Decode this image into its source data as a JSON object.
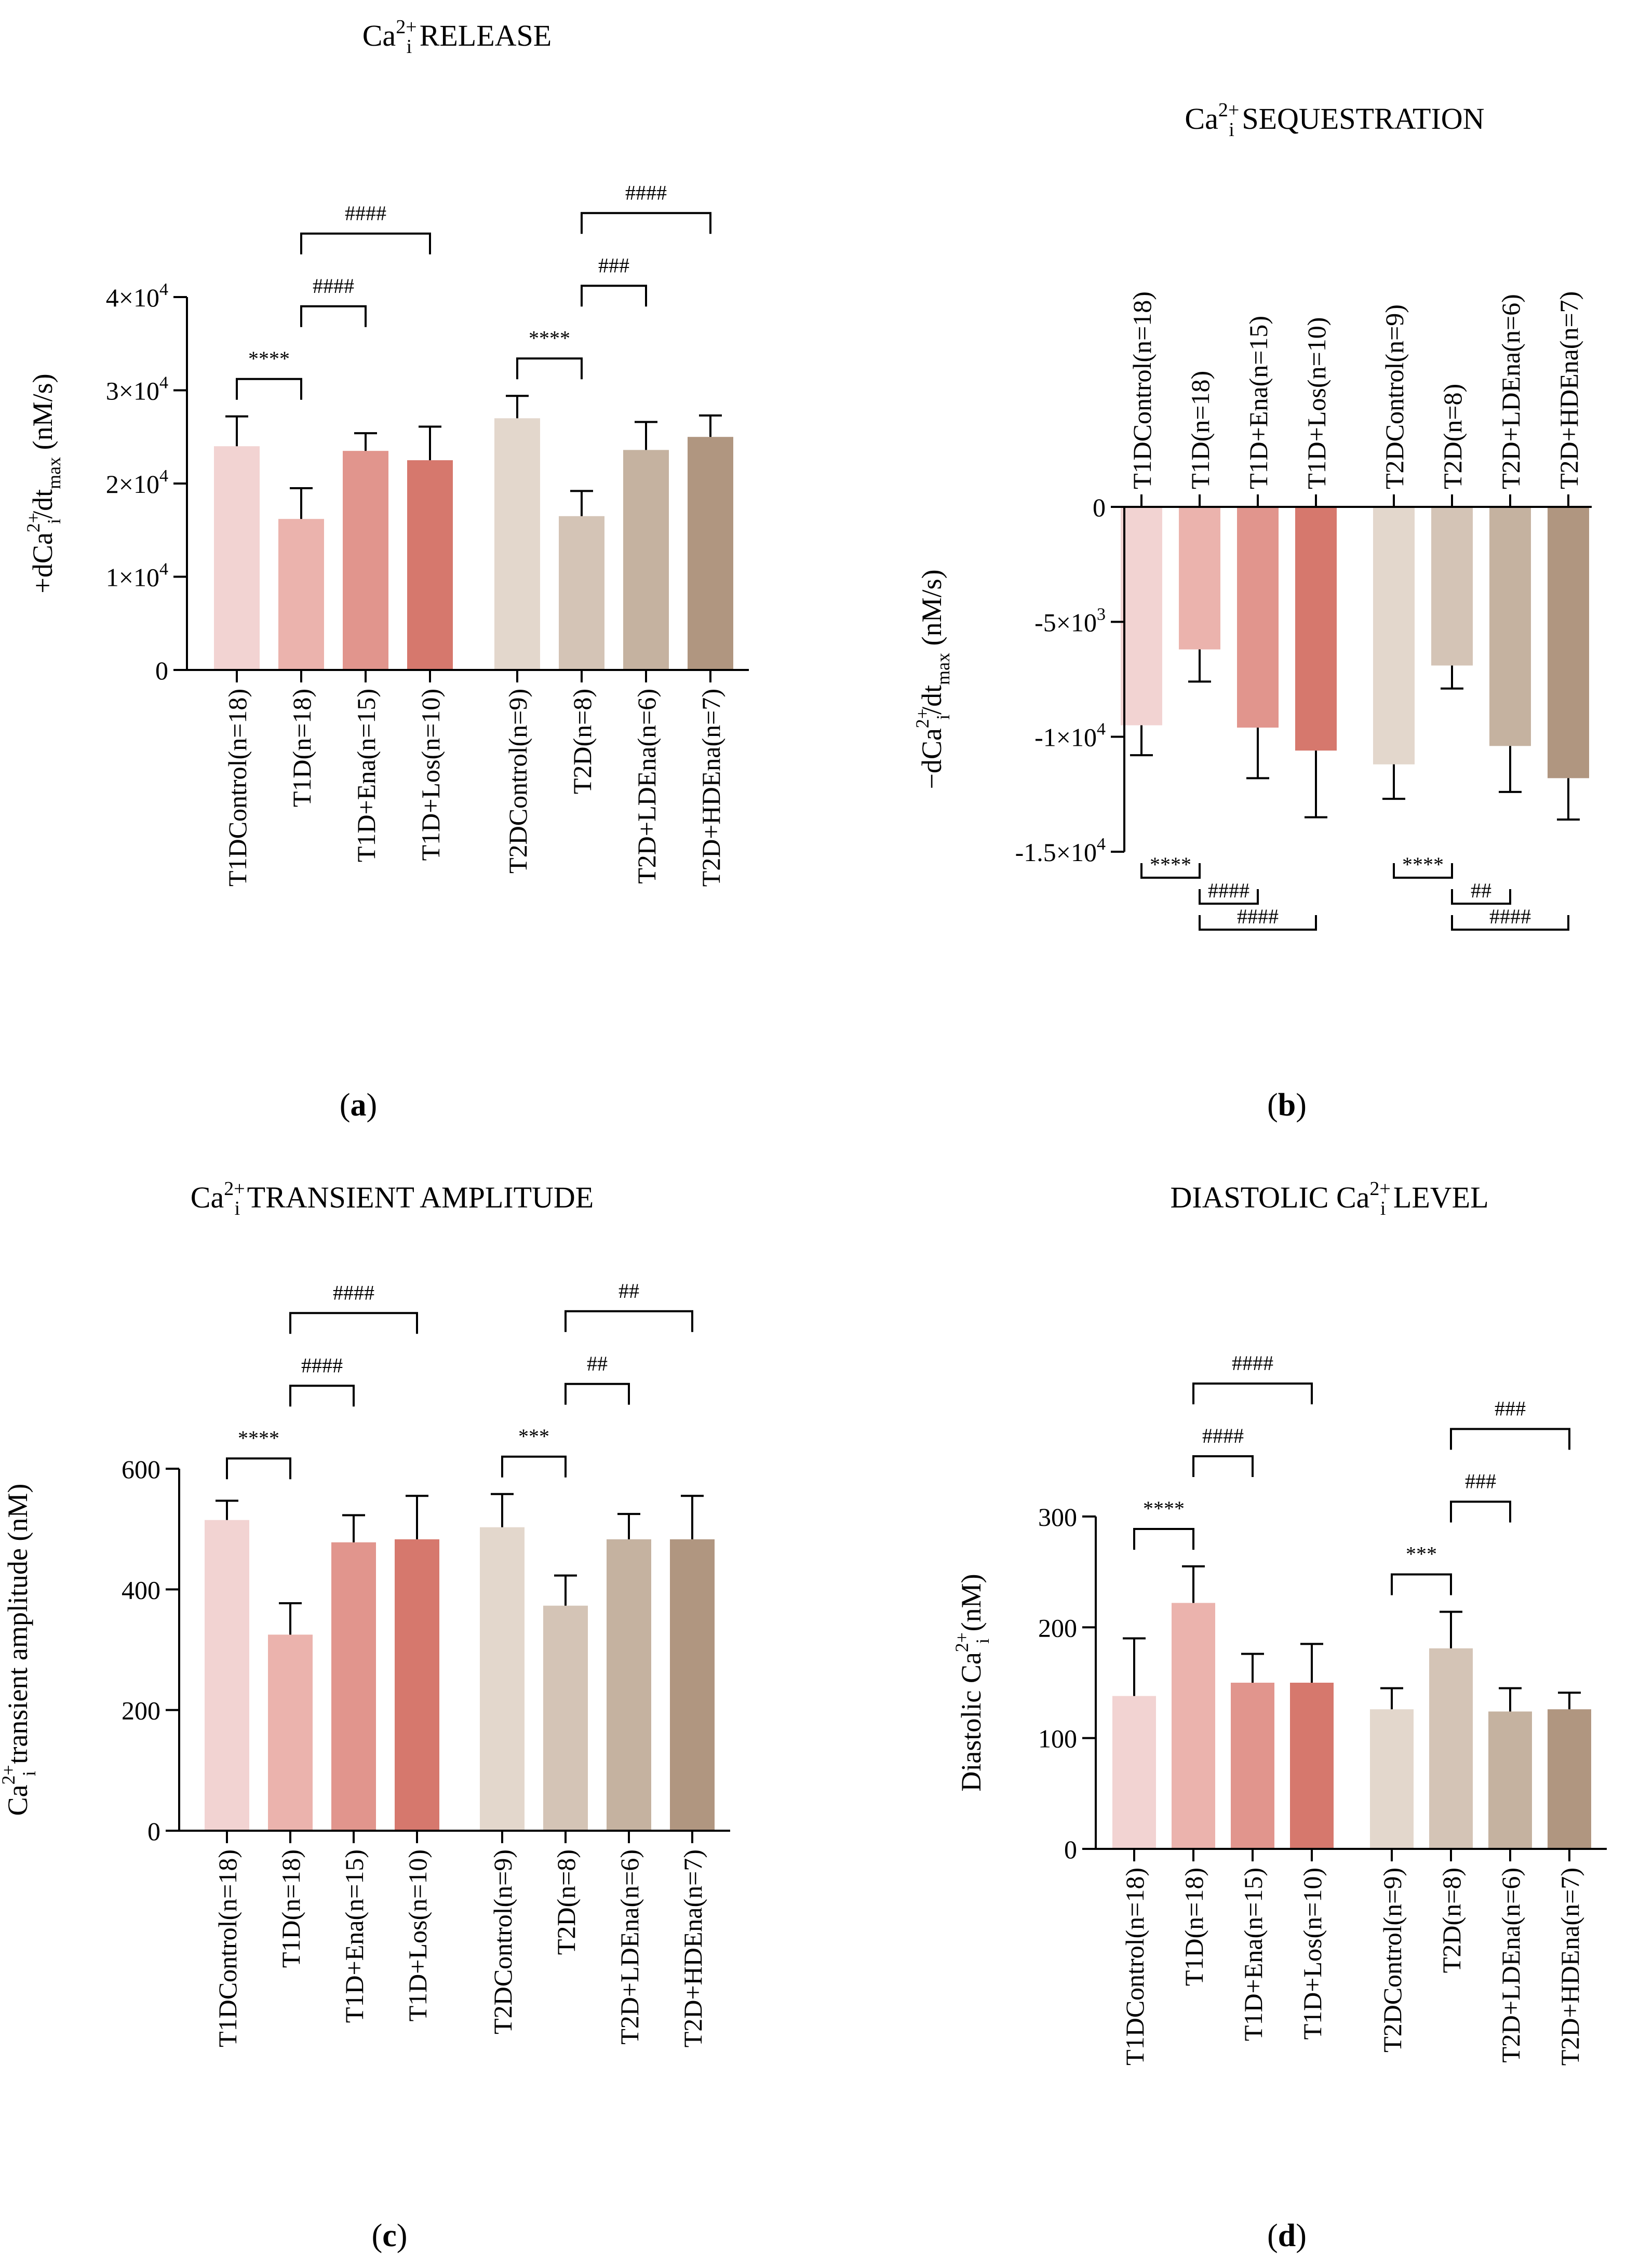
{
  "chart_data": [
    {
      "id": "a",
      "type": "bar",
      "panel_label": "a",
      "title_main": "Ca",
      "title_sup": "2+",
      "title_sub": "i",
      "title_rest": "RELEASE",
      "ylabel_parts": [
        "+dCa",
        "2+",
        "i",
        "/dt",
        "max",
        "(nM/s)"
      ],
      "ylim": [
        0,
        40000
      ],
      "yticks": [
        {
          "value": 0,
          "label": "0"
        },
        {
          "value": 10000,
          "label": "1×10",
          "exp": "4"
        },
        {
          "value": 20000,
          "label": "2×10",
          "exp": "4"
        },
        {
          "value": 30000,
          "label": "3×10",
          "exp": "4"
        },
        {
          "value": 40000,
          "label": "4×10",
          "exp": "4"
        }
      ],
      "categories": [
        "T1DControl(n=18)",
        "T1D(n=18)",
        "T1D+Ena(n=15)",
        "T1D+Los(n=10)",
        "T2DControl(n=9)",
        "T2D(n=8)",
        "T2D+LDEna(n=6)",
        "T2D+HDEna(n=7)"
      ],
      "values": [
        24000,
        16200,
        23500,
        22500,
        27000,
        16500,
        23600,
        25000
      ],
      "errors": [
        3200,
        3300,
        1900,
        3600,
        2400,
        2700,
        3000,
        2300
      ],
      "colors": [
        "#f2d3d2",
        "#ebb3ad",
        "#e1958d",
        "#d6786d",
        "#e3d7cc",
        "#d4c4b6",
        "#c5b2a0",
        "#b09680"
      ],
      "significance": [
        {
          "from": 0,
          "to": 1,
          "label": "****",
          "level": 1
        },
        {
          "from": 1,
          "to": 2,
          "label": "####",
          "level": 2
        },
        {
          "from": 1,
          "to": 3,
          "label": "####",
          "level": 3
        },
        {
          "from": 4,
          "to": 5,
          "label": "****",
          "level": 1
        },
        {
          "from": 5,
          "to": 6,
          "label": "###",
          "level": 2
        },
        {
          "from": 5,
          "to": 7,
          "label": "####",
          "level": 3
        }
      ]
    },
    {
      "id": "b",
      "type": "bar",
      "panel_label": "b",
      "title_main": "Ca",
      "title_sup": "2+",
      "title_sub": "i",
      "title_rest": "SEQUESTRATION",
      "ylabel_parts": [
        "−dCa",
        "2+",
        "i",
        "/dt",
        "max",
        "(nM/s)"
      ],
      "ylim": [
        -15000,
        0
      ],
      "yticks": [
        {
          "value": 0,
          "label": "0"
        },
        {
          "value": -5000,
          "label": "-5×10",
          "exp": "3"
        },
        {
          "value": -10000,
          "label": "-1×10",
          "exp": "4"
        },
        {
          "value": -15000,
          "label": "-1.5×10",
          "exp": "4"
        }
      ],
      "categories": [
        "T1DControl(n=18)",
        "T1D(n=18)",
        "T1D+Ena(n=15)",
        "T1D+Los(n=10)",
        "T2DControl(n=9)",
        "T2D(n=8)",
        "T2D+LDEna(n=6)",
        "T2D+HDEna(n=7)"
      ],
      "values": [
        -9500,
        -6200,
        -9600,
        -10600,
        -11200,
        -6900,
        -10400,
        -11800
      ],
      "errors": [
        1300,
        1400,
        2200,
        2900,
        1500,
        1000,
        2000,
        1800
      ],
      "colors": [
        "#f2d3d2",
        "#ebb3ad",
        "#e1958d",
        "#d6786d",
        "#e3d7cc",
        "#d4c4b6",
        "#c5b2a0",
        "#b09680"
      ],
      "significance": [
        {
          "from": 0,
          "to": 1,
          "label": "****",
          "level": 1
        },
        {
          "from": 1,
          "to": 2,
          "label": "####",
          "level": 2
        },
        {
          "from": 1,
          "to": 3,
          "label": "####",
          "level": 3
        },
        {
          "from": 4,
          "to": 5,
          "label": "****",
          "level": 1
        },
        {
          "from": 5,
          "to": 6,
          "label": "##",
          "level": 2
        },
        {
          "from": 5,
          "to": 7,
          "label": "####",
          "level": 3
        }
      ]
    },
    {
      "id": "c",
      "type": "bar",
      "panel_label": "c",
      "title_main": "Ca",
      "title_sup": "2+",
      "title_sub": "i",
      "title_rest": "TRANSIENT AMPLITUDE",
      "ylabel_parts": [
        "Ca",
        "2+",
        "i",
        "transient amplitude (nM)"
      ],
      "ylim": [
        0,
        600
      ],
      "yticks": [
        {
          "value": 0,
          "label": "0"
        },
        {
          "value": 200,
          "label": "200"
        },
        {
          "value": 400,
          "label": "400"
        },
        {
          "value": 600,
          "label": "600"
        }
      ],
      "categories": [
        "T1DControl(n=18)",
        "T1D(n=18)",
        "T1D+Ena(n=15)",
        "T1D+Los(n=10)",
        "T2DControl(n=9)",
        "T2D(n=8)",
        "T2D+LDEna(n=6)",
        "T2D+HDEna(n=7)"
      ],
      "values": [
        515,
        325,
        478,
        483,
        503,
        373,
        483,
        483
      ],
      "errors": [
        32,
        52,
        45,
        72,
        55,
        50,
        42,
        72
      ],
      "colors": [
        "#f2d3d2",
        "#ebb3ad",
        "#e1958d",
        "#d6786d",
        "#e3d7cc",
        "#d4c4b6",
        "#c5b2a0",
        "#b09680"
      ],
      "significance": [
        {
          "from": 0,
          "to": 1,
          "label": "****",
          "level": 1
        },
        {
          "from": 1,
          "to": 2,
          "label": "####",
          "level": 2
        },
        {
          "from": 1,
          "to": 3,
          "label": "####",
          "level": 3
        },
        {
          "from": 4,
          "to": 5,
          "label": "***",
          "level": 1
        },
        {
          "from": 5,
          "to": 6,
          "label": "##",
          "level": 2
        },
        {
          "from": 5,
          "to": 7,
          "label": "##",
          "level": 3
        }
      ]
    },
    {
      "id": "d",
      "type": "bar",
      "panel_label": "d",
      "title_main": "DIASTOLIC Ca",
      "title_sup": "2+",
      "title_sub": "i",
      "title_rest": "LEVEL",
      "ylabel_parts": [
        "Diastolic Ca",
        "2+",
        "i",
        "(nM)"
      ],
      "ylim": [
        0,
        300
      ],
      "yticks": [
        {
          "value": 0,
          "label": "0"
        },
        {
          "value": 100,
          "label": "100"
        },
        {
          "value": 200,
          "label": "200"
        },
        {
          "value": 300,
          "label": "300"
        }
      ],
      "categories": [
        "T1DControl(n=18)",
        "T1D(n=18)",
        "T1D+Ena(n=15)",
        "T1D+Los(n=10)",
        "T2DControl(n=9)",
        "T2D(n=8)",
        "T2D+LDEna(n=6)",
        "T2D+HDEna(n=7)"
      ],
      "values": [
        138,
        222,
        150,
        150,
        126,
        181,
        124,
        126
      ],
      "errors": [
        52,
        33,
        26,
        35,
        19,
        33,
        21,
        15
      ],
      "colors": [
        "#f2d3d2",
        "#ebb3ad",
        "#e1958d",
        "#d6786d",
        "#e3d7cc",
        "#d4c4b6",
        "#c5b2a0",
        "#b09680"
      ],
      "significance": [
        {
          "from": 0,
          "to": 1,
          "label": "****",
          "level": 1
        },
        {
          "from": 1,
          "to": 2,
          "label": "####",
          "level": 2
        },
        {
          "from": 1,
          "to": 3,
          "label": "####",
          "level": 3
        },
        {
          "from": 4,
          "to": 5,
          "label": "***",
          "level": 1
        },
        {
          "from": 5,
          "to": 6,
          "label": "###",
          "level": 2
        },
        {
          "from": 5,
          "to": 7,
          "label": "###",
          "level": 3
        }
      ]
    }
  ]
}
